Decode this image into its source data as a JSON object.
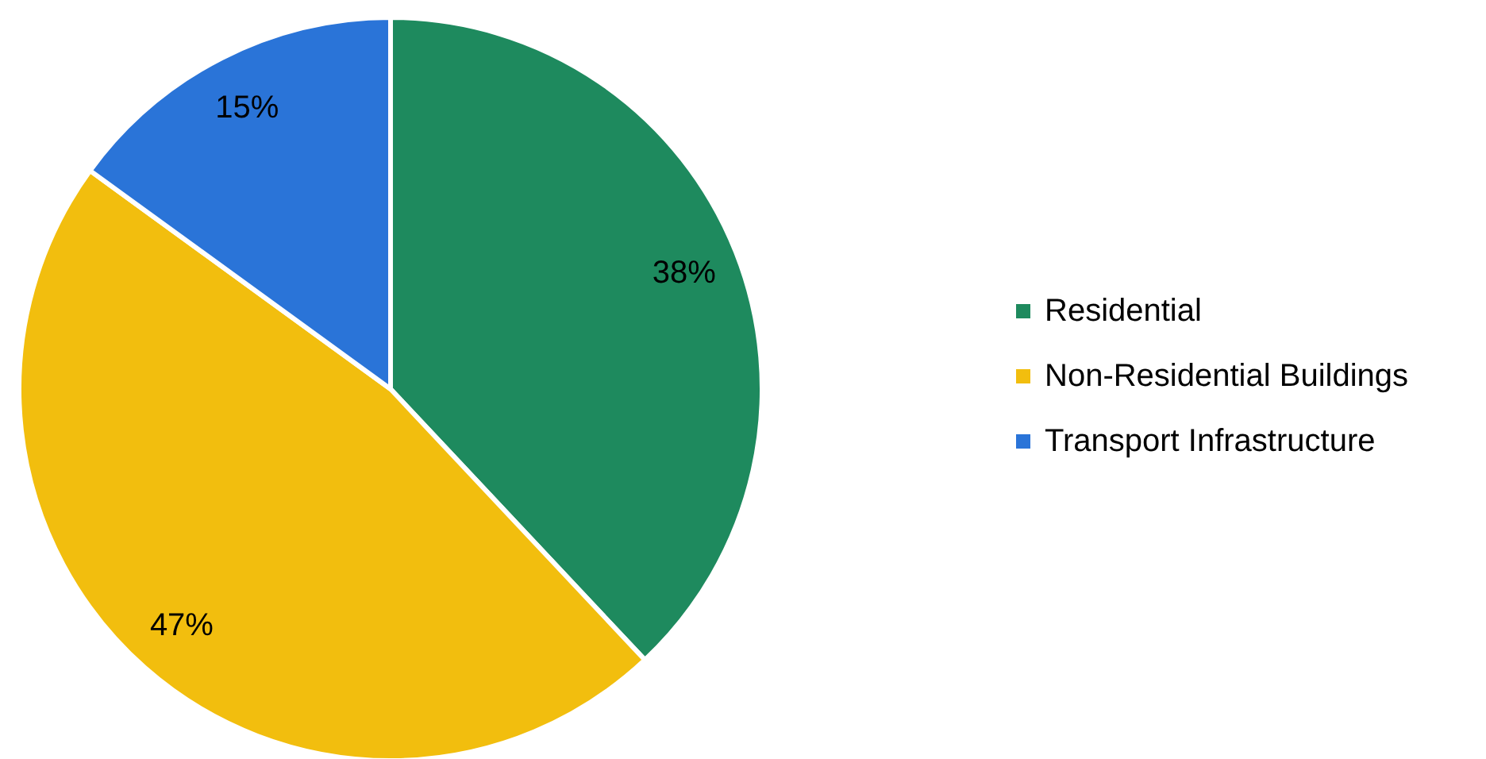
{
  "chart_data": {
    "type": "pie",
    "categories": [
      "Residential",
      "Non-Residential Buildings",
      "Transport Infrastructure"
    ],
    "values": [
      38,
      47,
      15
    ],
    "colors": [
      "#1e8a5e",
      "#f2be0e",
      "#2a74d8"
    ],
    "value_labels": [
      "38%",
      "47%",
      "15%"
    ],
    "legend": "right"
  }
}
